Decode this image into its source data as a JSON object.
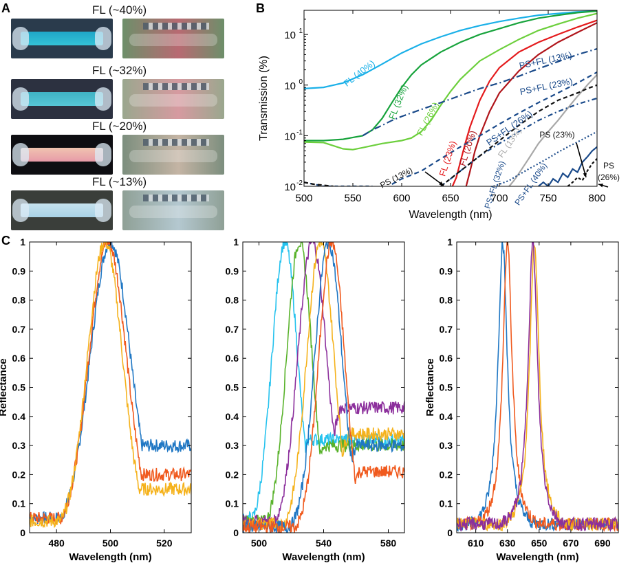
{
  "panels": {
    "a": "A",
    "b": "B",
    "c": "C"
  },
  "panel_a": {
    "rows": [
      {
        "label": "FL (~40%)",
        "sample_color": "#34c2d6",
        "sample_color2": "#1fa6c8",
        "bg": "#2a3b4c",
        "scene_left": "#6d8f6a",
        "scene_right": "#b86a72"
      },
      {
        "label": "FL (~32%)",
        "sample_color": "#56c6d6",
        "sample_color2": "#3fb2c4",
        "bg": "#2c3140",
        "scene_left": "#9aa78e",
        "scene_right": "#d69aa0"
      },
      {
        "label": "FL (~20%)",
        "sample_color": "#e79aa8",
        "sample_color2": "#f0c4b0",
        "bg": "#0e0e12",
        "scene_left": "#7c8e7e",
        "scene_right": "#c4b4a4"
      },
      {
        "label": "FL (~13%)",
        "sample_color": "#a9d2e6",
        "sample_color2": "#c6e2ee",
        "bg": "#3a3e3a",
        "scene_left": "#8fa096",
        "scene_right": "#b4c8d0"
      }
    ]
  },
  "chart_data": [
    {
      "id": "B",
      "type": "line",
      "title": "",
      "xlabel": "Wavelength (nm)",
      "ylabel": "Transmission (%)",
      "yscale": "log",
      "xlim": [
        500,
        800
      ],
      "ylim": [
        0.01,
        30
      ],
      "xticks": [
        500,
        550,
        600,
        650,
        700,
        750,
        800
      ],
      "yticks": [
        {
          "v": 0.01,
          "t": "10",
          "e": "-2"
        },
        {
          "v": 0.1,
          "t": "10",
          "e": "-1"
        },
        {
          "v": 1,
          "t": "10",
          "e": "0"
        },
        {
          "v": 10,
          "t": "10",
          "e": "1"
        }
      ],
      "series": [
        {
          "name": "FL (40%)",
          "color": "#1ab0e8",
          "dash": "",
          "x": [
            500,
            520,
            540,
            560,
            580,
            600,
            620,
            640,
            660,
            680,
            700,
            720,
            740,
            760,
            780,
            800
          ],
          "y": [
            0.85,
            0.9,
            1.1,
            1.6,
            2.6,
            4.3,
            6.5,
            9,
            12,
            15,
            18,
            21,
            24,
            26,
            28,
            29
          ]
        },
        {
          "name": "FL (32%)",
          "color": "#17a33c",
          "dash": "",
          "x": [
            500,
            520,
            540,
            560,
            570,
            580,
            590,
            600,
            610,
            620,
            640,
            660,
            680,
            700,
            720,
            740,
            760,
            780,
            800
          ],
          "y": [
            0.08,
            0.08,
            0.085,
            0.1,
            0.13,
            0.22,
            0.45,
            0.9,
            1.6,
            2.5,
            4.5,
            7,
            10,
            13,
            17,
            21,
            24,
            27,
            29
          ]
        },
        {
          "name": "FL (26%)",
          "color": "#6ccf3c",
          "dash": "",
          "x": [
            500,
            520,
            540,
            550,
            560,
            580,
            600,
            610,
            620,
            630,
            640,
            650,
            660,
            680,
            700,
            720,
            740,
            760,
            780,
            800
          ],
          "y": [
            0.075,
            0.073,
            0.055,
            0.053,
            0.058,
            0.07,
            0.08,
            0.09,
            0.12,
            0.2,
            0.4,
            0.75,
            1.3,
            3,
            5,
            8,
            12,
            16,
            21,
            26
          ]
        },
        {
          "name": "FL (23%)",
          "color": "#e41a1c",
          "dash": "",
          "x": [
            652,
            656,
            660,
            665,
            670,
            680,
            690,
            700,
            720,
            740,
            760,
            780,
            800
          ],
          "y": [
            0.01,
            0.015,
            0.03,
            0.07,
            0.15,
            0.5,
            1.2,
            2.2,
            4.5,
            7,
            10,
            14,
            19
          ]
        },
        {
          "name": "FL (20%)",
          "color": "#b0141a",
          "dash": "",
          "x": [
            666,
            670,
            675,
            680,
            690,
            700,
            720,
            740,
            760,
            780,
            800
          ],
          "y": [
            0.01,
            0.02,
            0.05,
            0.1,
            0.3,
            0.7,
            1.9,
            4,
            7,
            11,
            17
          ]
        },
        {
          "name": "FL (13%)",
          "color": "#a8a8a8",
          "dash": "",
          "x": [
            710,
            715,
            720,
            730,
            740,
            750,
            760,
            770,
            780,
            790,
            800
          ],
          "y": [
            0.01,
            0.013,
            0.018,
            0.035,
            0.07,
            0.12,
            0.2,
            0.35,
            0.6,
            1,
            1.6
          ]
        },
        {
          "name": "PS+FL (13%)",
          "color": "#1a4a8a",
          "dash": "10,4,2,4",
          "x": [
            560,
            570,
            580,
            590,
            600,
            620,
            640,
            660,
            680,
            700,
            720,
            740,
            760,
            780,
            800
          ],
          "y": [
            0.1,
            0.13,
            0.16,
            0.2,
            0.24,
            0.33,
            0.45,
            0.62,
            0.85,
            1.1,
            1.5,
            2.1,
            2.9,
            4,
            5.2
          ]
        },
        {
          "name": "PS+FL (23%)",
          "color": "#1a4a8a",
          "dash": "7,5",
          "x": [
            590,
            600,
            620,
            640,
            660,
            680,
            700,
            720,
            740,
            760,
            780,
            800
          ],
          "y": [
            0.011,
            0.014,
            0.02,
            0.035,
            0.06,
            0.1,
            0.17,
            0.28,
            0.45,
            0.7,
            1.1,
            1.8
          ]
        },
        {
          "name": "PS+FL (26%)",
          "color": "#1a4a8a",
          "dash": "7,4,2,4",
          "x": [
            640,
            650,
            660,
            680,
            700,
            720,
            740,
            760,
            780,
            800
          ],
          "y": [
            0.01,
            0.014,
            0.02,
            0.04,
            0.07,
            0.12,
            0.2,
            0.3,
            0.42,
            0.55
          ]
        },
        {
          "name": "PS+FL (32%)",
          "color": "#1a4a8a",
          "dash": "2,3",
          "x": [
            694,
            700,
            710,
            720,
            730,
            740,
            750,
            760,
            770,
            780,
            790,
            800
          ],
          "y": [
            0.01,
            0.011,
            0.013,
            0.017,
            0.022,
            0.028,
            0.036,
            0.047,
            0.06,
            0.075,
            0.095,
            0.12
          ]
        },
        {
          "name": "PS+FL (40%)",
          "color": "#1a4a8a",
          "dash": "",
          "x": [
            740,
            745,
            750,
            755,
            760,
            765,
            770,
            775,
            780,
            785,
            790,
            795,
            800
          ],
          "y": [
            0.01,
            0.012,
            0.01,
            0.014,
            0.012,
            0.018,
            0.015,
            0.022,
            0.019,
            0.03,
            0.038,
            0.05,
            0.06
          ]
        },
        {
          "name": "PS (13%)",
          "color": "#1a4a8a",
          "dash": "5,4",
          "x": [
            500,
            510,
            520,
            530,
            540,
            550,
            560,
            570
          ],
          "y": [
            0.012,
            0.011,
            0.01,
            0.01,
            0.01,
            0.01,
            0.01,
            0.01
          ]
        },
        {
          "name": "PS (23%)",
          "color": "#111111",
          "dash": "6,4",
          "x": [
            640,
            660,
            680,
            700,
            720,
            740,
            760,
            780,
            790,
            800
          ],
          "y": [
            0.01,
            0.02,
            0.04,
            0.08,
            0.16,
            0.3,
            0.5,
            0.7,
            0.85,
            1
          ]
        },
        {
          "name": "PS (26%)",
          "color": "#111111",
          "dash": "4,3",
          "x": [
            770,
            775,
            780,
            785,
            790,
            795,
            800
          ],
          "y": [
            0.01,
            0.012,
            0.015,
            0.013,
            0.02,
            0.028,
            0.035
          ]
        },
        {
          "name": "PS dashed baseline",
          "color": "#111111",
          "dash": "6,4",
          "x": [
            500,
            510,
            520,
            530
          ],
          "y": [
            0.012,
            0.011,
            0.0105,
            0.01
          ]
        }
      ],
      "annotations": [
        {
          "text": "FL (40%)",
          "color": "#1ab0e8"
        },
        {
          "text": "FL (32%)",
          "color": "#17a33c"
        },
        {
          "text": "FL (26%)",
          "color": "#6ccf3c"
        },
        {
          "text": "FL (23%)",
          "color": "#e41a1c"
        },
        {
          "text": "FL (20%)",
          "color": "#b0141a"
        },
        {
          "text": "FL (13%)",
          "color": "#a8a8a8"
        },
        {
          "text": "PS+FL (13%)",
          "color": "#1a4a8a"
        },
        {
          "text": "PS+FL (23%)",
          "color": "#1a4a8a"
        },
        {
          "text": "PS+FL (26%)",
          "color": "#1a4a8a"
        },
        {
          "text": "PS+FL (32%)",
          "color": "#1a4a8a"
        },
        {
          "text": "PS+FL (40%)",
          "color": "#1a4a8a"
        },
        {
          "text": "PS (13%)",
          "color": "#111111"
        },
        {
          "text": "PS (23%)",
          "color": "#111111"
        },
        {
          "text": "PS",
          "color": "#111111"
        },
        {
          "text": "(26%)",
          "color": "#111111"
        }
      ]
    },
    {
      "id": "C1",
      "type": "line",
      "xlabel": "Wavelength (nm)",
      "ylabel": "Reflectance",
      "xlim": [
        470,
        530
      ],
      "ylim": [
        0,
        1
      ],
      "xticks": [
        480,
        500,
        520
      ],
      "yticks": [
        0,
        0.1,
        0.2,
        0.3,
        0.4,
        0.5,
        0.6,
        0.7,
        0.8,
        0.9,
        1
      ],
      "series": [
        {
          "name": "blue",
          "color": "#1f77c4",
          "peak": 500,
          "width": 7.5,
          "tail": 0.3,
          "tailStart": 508,
          "base": 0.05
        },
        {
          "name": "orange",
          "color": "#f05a1e",
          "peak": 499,
          "width": 7,
          "tail": 0.2,
          "tailStart": 510,
          "base": 0.05
        },
        {
          "name": "yellow",
          "color": "#f5b21b",
          "peak": 498,
          "width": 6.5,
          "tail": 0.15,
          "tailStart": 511,
          "base": 0.04
        }
      ]
    },
    {
      "id": "C2",
      "type": "line",
      "xlabel": "Wavelength (nm)",
      "ylabel": "",
      "xlim": [
        490,
        590
      ],
      "ylim": [
        0,
        1
      ],
      "xticks": [
        500,
        540,
        580
      ],
      "yticks": [
        0,
        0.1,
        0.2,
        0.3,
        0.4,
        0.5,
        0.6,
        0.7,
        0.8,
        0.9,
        1
      ],
      "series": [
        {
          "name": "cyan",
          "color": "#25c2ee",
          "peak": 516,
          "width": 8,
          "tail": 0.32,
          "tailStart": 530,
          "base": 0.05
        },
        {
          "name": "green",
          "color": "#58b22a",
          "peak": 525,
          "width": 8,
          "tail": 0.3,
          "tailStart": 540,
          "base": 0.04
        },
        {
          "name": "purple",
          "color": "#8c2f9c",
          "peak": 533,
          "width": 9,
          "tail": 0.43,
          "tailStart": 550,
          "base": 0.04
        },
        {
          "name": "yellow",
          "color": "#f5b21b",
          "peak": 538,
          "width": 8.5,
          "tail": 0.34,
          "tailStart": 555,
          "base": 0.03
        },
        {
          "name": "blue",
          "color": "#1f77c4",
          "peak": 543,
          "width": 8.5,
          "tail": 0.3,
          "tailStart": 560,
          "base": 0.02
        },
        {
          "name": "orange",
          "color": "#f05a1e",
          "peak": 545,
          "width": 8,
          "tail": 0.21,
          "tailStart": 562,
          "base": 0.02
        }
      ]
    },
    {
      "id": "C3",
      "type": "line",
      "xlabel": "Wavelength (nm)",
      "ylabel": "Reflectance",
      "xlim": [
        598,
        700
      ],
      "ylim": [
        0,
        1
      ],
      "xticks": [
        610,
        630,
        650,
        670,
        690
      ],
      "yticks": [
        0,
        0.1,
        0.2,
        0.3,
        0.4,
        0.5,
        0.6,
        0.7,
        0.8,
        0.9,
        1
      ],
      "series": [
        {
          "name": "blue",
          "color": "#1f77c4",
          "peak": 627,
          "width": 3.6,
          "tail": 0.03,
          "tailStart": 700,
          "base": 0.03
        },
        {
          "name": "orange",
          "color": "#f05a1e",
          "peak": 630,
          "width": 3.6,
          "tail": 0.03,
          "tailStart": 700,
          "base": 0.03
        },
        {
          "name": "yellow",
          "color": "#f5b21b",
          "peak": 647,
          "width": 3.6,
          "tail": 0.03,
          "tailStart": 700,
          "base": 0.03
        },
        {
          "name": "purple",
          "color": "#8c2f9c",
          "peak": 646,
          "width": 3.6,
          "tail": 0.03,
          "tailStart": 700,
          "base": 0.03
        }
      ]
    }
  ]
}
